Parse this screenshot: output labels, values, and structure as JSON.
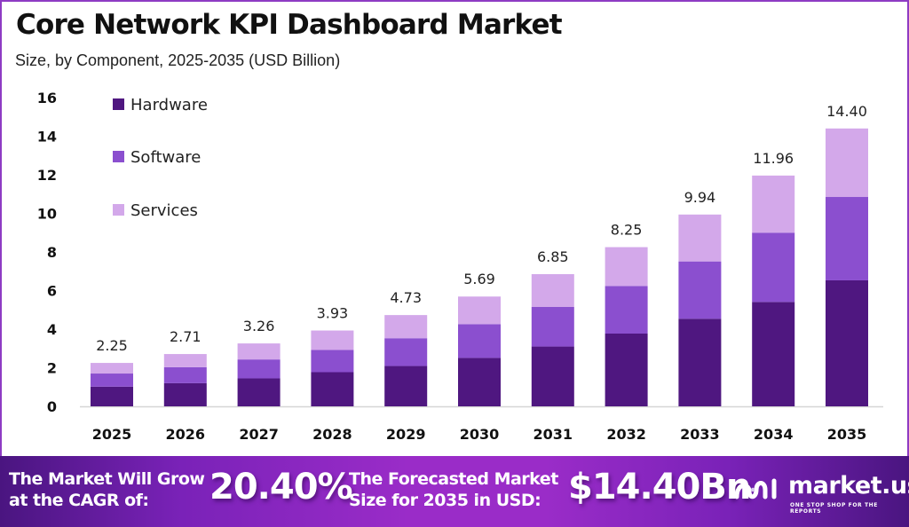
{
  "header": {
    "title": "Core Network KPI Dashboard Market",
    "subtitle": "Size, by Component, 2025-2035 (USD Billion)"
  },
  "chart_data": {
    "type": "bar",
    "stacked": true,
    "title": "Core Network KPI Dashboard Market",
    "subtitle": "Size, by Component, 2025-2035 (USD Billion)",
    "xlabel": "",
    "ylabel": "",
    "categories": [
      "2025",
      "2026",
      "2027",
      "2028",
      "2029",
      "2030",
      "2031",
      "2032",
      "2033",
      "2034",
      "2035"
    ],
    "series": [
      {
        "name": "Hardware",
        "color": "#4f1780",
        "values": [
          1.02,
          1.2,
          1.45,
          1.77,
          2.09,
          2.51,
          3.1,
          3.77,
          4.54,
          5.41,
          6.53
        ]
      },
      {
        "name": "Software",
        "color": "#8b4fcf",
        "values": [
          0.68,
          0.83,
          0.98,
          1.15,
          1.44,
          1.75,
          2.05,
          2.47,
          2.97,
          3.59,
          4.32
        ]
      },
      {
        "name": "Services",
        "color": "#d3a8ea",
        "values": [
          0.55,
          0.68,
          0.83,
          1.01,
          1.2,
          1.43,
          1.7,
          2.01,
          2.43,
          2.96,
          3.55
        ]
      }
    ],
    "totals": [
      "2.25",
      "2.71",
      "3.26",
      "3.93",
      "4.73",
      "5.69",
      "6.85",
      "8.25",
      "9.94",
      "11.96",
      "14.40"
    ],
    "ylim": [
      0,
      16
    ],
    "yticks": [
      0,
      2,
      4,
      6,
      8,
      10,
      12,
      14,
      16
    ],
    "grid": false,
    "legend": "top-left"
  },
  "footer": {
    "cagr_label_line1": "The Market Will Grow",
    "cagr_label_line2": "at the CAGR of:",
    "cagr_value": "20.40%",
    "forecast_label_line1": "The Forecasted Market",
    "forecast_label_line2": "Size for 2035 in USD:",
    "forecast_value": "$14.40Bn",
    "brand_name": "market.us",
    "brand_tagline": "ONE STOP SHOP FOR THE REPORTS",
    "brand_icon": "market-us-logo-icon"
  }
}
